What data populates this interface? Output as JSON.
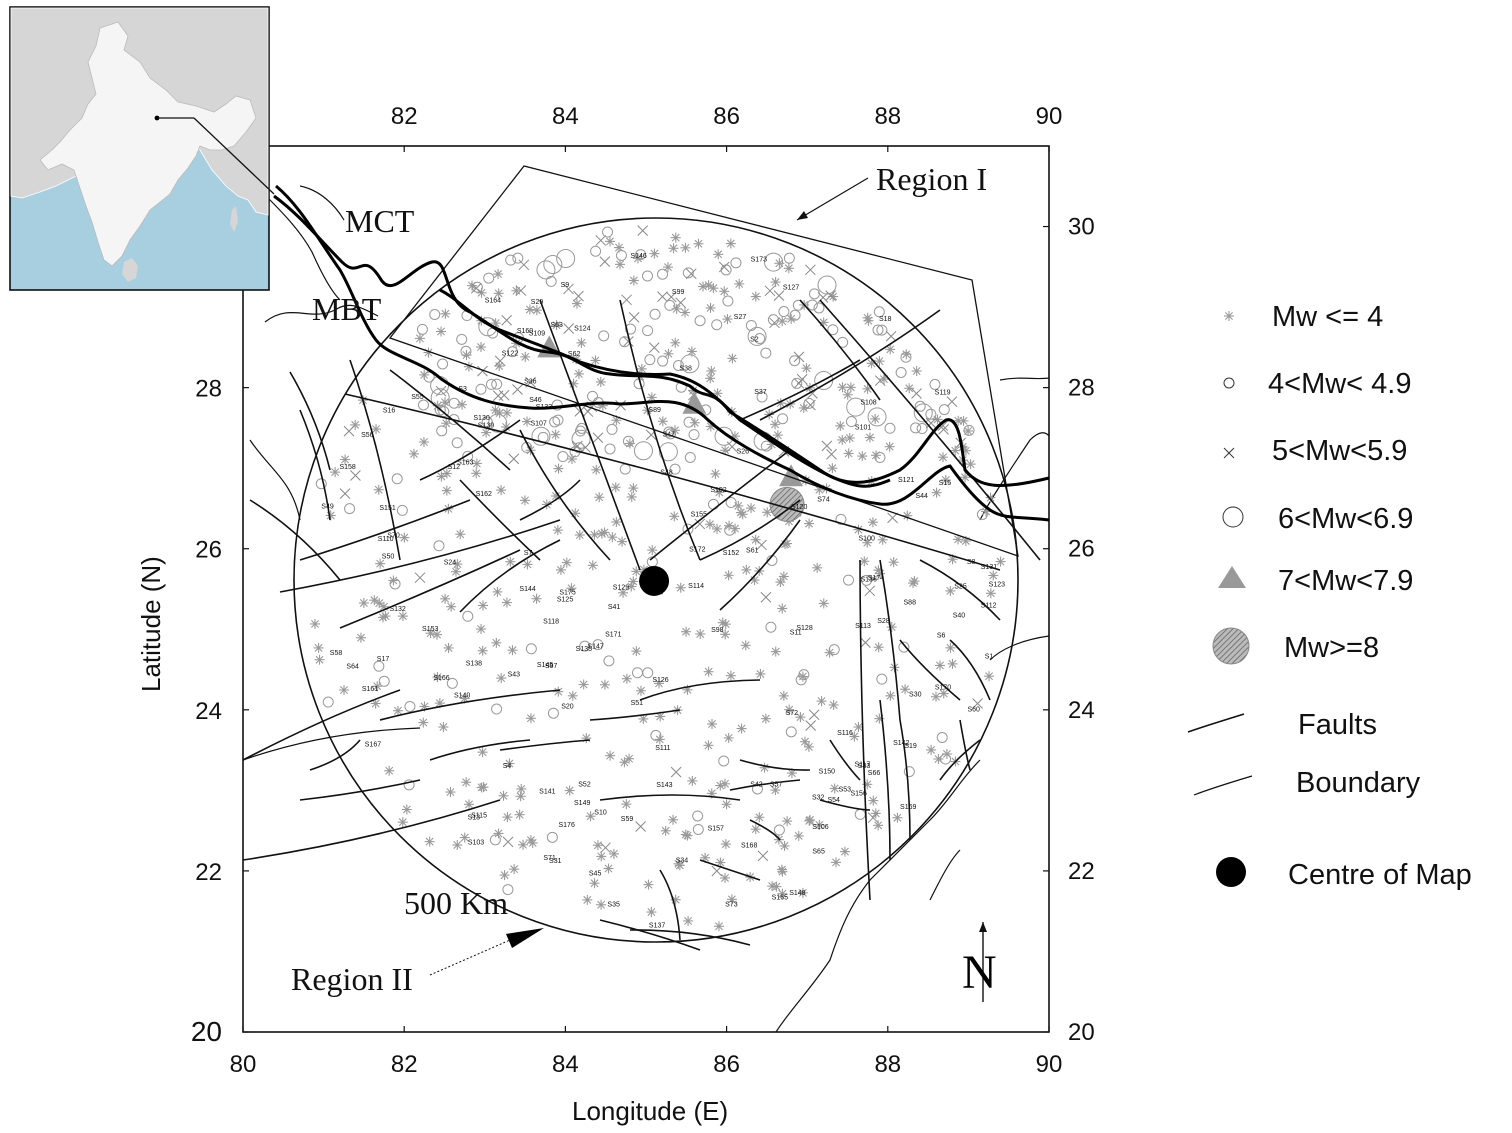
{
  "map": {
    "x_axis": {
      "title": "Longitude (E)",
      "ticks": [
        "80",
        "82",
        "84",
        "86",
        "88",
        "90"
      ],
      "top_ticks": [
        "82",
        "84",
        "86",
        "88",
        "90"
      ]
    },
    "y_axis": {
      "title": "Latitude (N)",
      "ticks": [
        "20",
        "22",
        "24",
        "26",
        "28"
      ],
      "right_ticks": [
        "20",
        "22",
        "24",
        "26",
        "28",
        "30"
      ]
    },
    "x_range": [
      80,
      90
    ],
    "y_range": [
      20,
      31
    ],
    "center": {
      "lon": 85.1,
      "lat": 25.6
    },
    "radius_label": "500 Km",
    "labels": {
      "region1": "Region I",
      "region2": "Region II",
      "mct": "MCT",
      "mbt": "MBT",
      "north": "N"
    },
    "source_labels": [
      "S1",
      "S2",
      "S3",
      "S4",
      "S6",
      "S7",
      "S8",
      "S9",
      "S10",
      "S11",
      "S12",
      "S13",
      "S15",
      "S16",
      "S17",
      "S18",
      "S19",
      "S20",
      "S24",
      "S25",
      "S26",
      "S27",
      "S28",
      "S29",
      "S30",
      "S31",
      "S32",
      "S33",
      "S34",
      "S35",
      "S36",
      "S37",
      "S38",
      "S40",
      "S41",
      "S42",
      "S43",
      "S44",
      "S45",
      "S46",
      "S47",
      "S48",
      "S49",
      "S50",
      "S51",
      "S52",
      "S53",
      "S54",
      "S55",
      "S56",
      "S57",
      "S58",
      "S59",
      "S60",
      "S61",
      "S62",
      "S63",
      "S64",
      "S65",
      "S66",
      "S70",
      "S71",
      "S72",
      "S73",
      "S74",
      "S88",
      "S89",
      "S97",
      "S98",
      "S99",
      "S100",
      "S101",
      "S102",
      "S103",
      "S106",
      "S107",
      "S108",
      "S109",
      "S110",
      "S111",
      "S112",
      "S113",
      "S114",
      "S115",
      "S116",
      "S117",
      "S118",
      "S119",
      "S120",
      "S121",
      "S122",
      "S123",
      "S124",
      "S125",
      "S126",
      "S127",
      "S128",
      "S129",
      "S130",
      "S131",
      "S132",
      "S133",
      "S134",
      "S135",
      "S136",
      "S137",
      "S138",
      "S139",
      "S140",
      "S141",
      "S142",
      "S143",
      "S144",
      "S145",
      "S146",
      "S147",
      "S148",
      "S149",
      "S150",
      "S151",
      "S152",
      "S153",
      "S155",
      "S156",
      "S157",
      "S158",
      "S160",
      "S161",
      "S162",
      "S163",
      "S164",
      "S165",
      "S166",
      "S167",
      "S168",
      "S169",
      "S170",
      "S171",
      "S172",
      "S173",
      "S174",
      "S175",
      "S176"
    ]
  },
  "legend": {
    "items": [
      {
        "label": "Mw <= 4",
        "symbol": "star"
      },
      {
        "label": "4<Mw< 4.9",
        "symbol": "circle-small"
      },
      {
        "label": "5<Mw<5.9",
        "symbol": "cross"
      },
      {
        "label": "6<Mw<6.9",
        "symbol": "circle-large"
      },
      {
        "label": "7<Mw<7.9",
        "symbol": "triangle"
      },
      {
        "label": "Mw>=8",
        "symbol": "hatched-circle"
      },
      {
        "label": "Faults",
        "symbol": "fault-line"
      },
      {
        "label": "Boundary",
        "symbol": "boundary-line"
      },
      {
        "label": "Centre of Map",
        "symbol": "filled-circle"
      }
    ]
  },
  "events": {
    "magnitude_7_8": [
      {
        "lon": 83.8,
        "lat": 28.5
      },
      {
        "lon": 85.6,
        "lat": 27.8
      },
      {
        "lon": 86.8,
        "lat": 26.9
      }
    ],
    "magnitude_8_plus": [
      {
        "lon": 86.75,
        "lat": 26.55
      }
    ]
  },
  "colors": {
    "ocean": "#a7cfe0",
    "land": "#f4f4f4",
    "inset-gray": "#d6d6d6",
    "symbol-gray": "#9a9a9a"
  }
}
